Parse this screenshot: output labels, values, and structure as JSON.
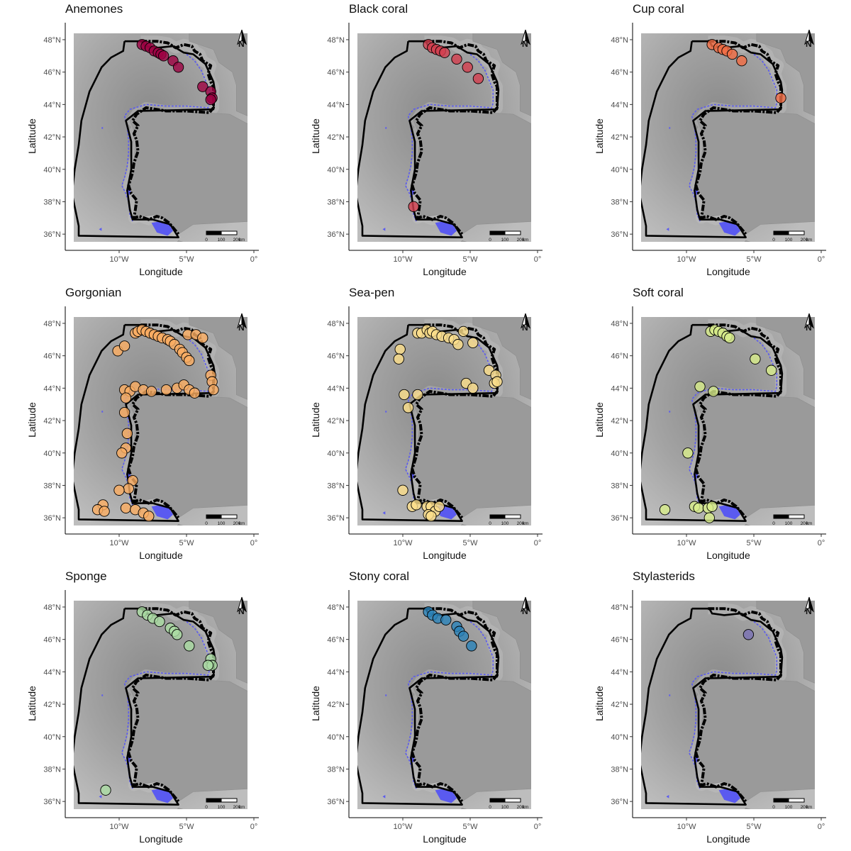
{
  "axes": {
    "xlabel": "Longitude",
    "ylabel": "Latitude",
    "xlim": [
      -14,
      0
    ],
    "ylim": [
      35,
      49
    ],
    "x_ticks": [
      {
        "v": -10,
        "label": "10°W"
      },
      {
        "v": -5,
        "label": "5°W"
      },
      {
        "v": 0,
        "label": "0°"
      }
    ],
    "y_ticks": [
      {
        "v": 36,
        "label": "36°N"
      },
      {
        "v": 38,
        "label": "38°N"
      },
      {
        "v": 40,
        "label": "40°N"
      },
      {
        "v": 42,
        "label": "42°N"
      },
      {
        "v": 44,
        "label": "44°N"
      },
      {
        "v": 46,
        "label": "46°N"
      },
      {
        "v": 48,
        "label": "48°N"
      }
    ]
  },
  "map": {
    "background": "grey bathymetry relief",
    "features": [
      "study-area boundary",
      "coastline",
      "shallow-water zones (blue)",
      "north arrow",
      "scale bar"
    ],
    "north_arrow_label": "N",
    "scale_bar_labels": [
      "0",
      "100",
      "200",
      "km"
    ],
    "colors": {
      "relief_light": "#bdbdbd",
      "relief_dark": "#8a8a8a",
      "land": "#9a9a9a",
      "shallow": "#5a5af0"
    }
  },
  "chart_data": [
    {
      "type": "scatter",
      "title": "Anemones",
      "color": "#9e0142",
      "points": [
        [
          -8.3,
          47.7
        ],
        [
          -8.0,
          47.6
        ],
        [
          -7.7,
          47.5
        ],
        [
          -7.4,
          47.3
        ],
        [
          -7.1,
          47.2
        ],
        [
          -6.9,
          47.1
        ],
        [
          -6.7,
          47.0
        ],
        [
          -6.0,
          46.7
        ],
        [
          -5.6,
          46.3
        ],
        [
          -3.8,
          45.1
        ],
        [
          -3.2,
          44.8
        ],
        [
          -3.1,
          44.4
        ],
        [
          -3.2,
          44.3
        ]
      ]
    },
    {
      "type": "scatter",
      "title": "Black coral",
      "color": "#d53e4f",
      "points": [
        [
          -8.1,
          47.7
        ],
        [
          -7.8,
          47.5
        ],
        [
          -7.5,
          47.4
        ],
        [
          -7.2,
          47.3
        ],
        [
          -6.9,
          47.2
        ],
        [
          -6.0,
          46.8
        ],
        [
          -5.2,
          46.3
        ],
        [
          -4.4,
          45.6
        ],
        [
          -9.2,
          37.7
        ]
      ]
    },
    {
      "type": "scatter",
      "title": "Cup coral",
      "color": "#f46d43",
      "points": [
        [
          -8.1,
          47.7
        ],
        [
          -7.6,
          47.5
        ],
        [
          -7.3,
          47.4
        ],
        [
          -7.0,
          47.3
        ],
        [
          -6.6,
          47.1
        ],
        [
          -5.9,
          46.7
        ],
        [
          -3.0,
          44.4
        ]
      ]
    },
    {
      "type": "scatter",
      "title": "Gorgonian",
      "color": "#fdae61",
      "points": [
        [
          -8.8,
          47.4
        ],
        [
          -8.6,
          47.5
        ],
        [
          -8.3,
          47.6
        ],
        [
          -8.0,
          47.5
        ],
        [
          -7.7,
          47.4
        ],
        [
          -7.4,
          47.3
        ],
        [
          -7.1,
          47.2
        ],
        [
          -6.8,
          47.1
        ],
        [
          -6.4,
          47.0
        ],
        [
          -6.2,
          46.9
        ],
        [
          -5.9,
          46.7
        ],
        [
          -5.5,
          46.4
        ],
        [
          -5.3,
          46.2
        ],
        [
          -5.0,
          45.9
        ],
        [
          -4.8,
          45.7
        ],
        [
          -4.9,
          47.3
        ],
        [
          -4.3,
          47.3
        ],
        [
          -3.8,
          47.1
        ],
        [
          -3.2,
          44.8
        ],
        [
          -3.1,
          44.4
        ],
        [
          -3.0,
          43.9
        ],
        [
          -10.1,
          46.3
        ],
        [
          -9.6,
          46.6
        ],
        [
          -9.6,
          43.9
        ],
        [
          -9.2,
          43.8
        ],
        [
          -8.8,
          44.1
        ],
        [
          -8.2,
          43.9
        ],
        [
          -7.6,
          43.8
        ],
        [
          -6.5,
          43.9
        ],
        [
          -5.7,
          44.0
        ],
        [
          -5.2,
          44.2
        ],
        [
          -4.8,
          43.9
        ],
        [
          -4.4,
          43.7
        ],
        [
          -9.5,
          43.4
        ],
        [
          -9.6,
          42.5
        ],
        [
          -9.4,
          41.2
        ],
        [
          -9.5,
          40.3
        ],
        [
          -9.8,
          40.0
        ],
        [
          -9.0,
          38.3
        ],
        [
          -9.3,
          37.8
        ],
        [
          -10.0,
          37.7
        ],
        [
          -11.2,
          36.8
        ],
        [
          -11.6,
          36.5
        ],
        [
          -11.1,
          36.4
        ],
        [
          -9.5,
          36.6
        ],
        [
          -8.8,
          36.5
        ],
        [
          -8.2,
          36.3
        ],
        [
          -7.8,
          36.1
        ]
      ]
    },
    {
      "type": "scatter",
      "title": "Sea-pen",
      "color": "#fee08b",
      "points": [
        [
          -8.9,
          47.4
        ],
        [
          -8.6,
          47.4
        ],
        [
          -8.2,
          47.6
        ],
        [
          -8.0,
          47.4
        ],
        [
          -7.8,
          47.5
        ],
        [
          -7.5,
          47.3
        ],
        [
          -7.1,
          47.2
        ],
        [
          -6.6,
          47.1
        ],
        [
          -6.2,
          47.0
        ],
        [
          -5.9,
          46.7
        ],
        [
          -5.5,
          47.5
        ],
        [
          -4.8,
          46.8
        ],
        [
          -3.6,
          45.1
        ],
        [
          -3.1,
          44.8
        ],
        [
          -3.2,
          44.3
        ],
        [
          -3.0,
          44.4
        ],
        [
          -5.3,
          44.3
        ],
        [
          -4.8,
          44.0
        ],
        [
          -10.2,
          46.4
        ],
        [
          -10.3,
          45.8
        ],
        [
          -9.9,
          43.6
        ],
        [
          -8.9,
          43.6
        ],
        [
          -9.6,
          42.8
        ],
        [
          -10.0,
          37.7
        ],
        [
          -9.3,
          36.7
        ],
        [
          -9.0,
          36.8
        ],
        [
          -8.2,
          36.7
        ],
        [
          -7.9,
          36.7
        ],
        [
          -7.6,
          36.4
        ],
        [
          -7.3,
          36.7
        ],
        [
          -8.1,
          36.2
        ],
        [
          -7.9,
          36.1
        ]
      ]
    },
    {
      "type": "scatter",
      "title": "Soft coral",
      "color": "#d9ef8b",
      "points": [
        [
          -8.2,
          47.5
        ],
        [
          -7.9,
          47.6
        ],
        [
          -7.6,
          47.5
        ],
        [
          -7.3,
          47.4
        ],
        [
          -7.0,
          47.2
        ],
        [
          -6.8,
          47.1
        ],
        [
          -4.9,
          45.8
        ],
        [
          -3.7,
          45.1
        ],
        [
          -9.0,
          44.1
        ],
        [
          -8.0,
          43.8
        ],
        [
          -9.9,
          40.0
        ],
        [
          -11.6,
          36.5
        ],
        [
          -9.4,
          36.7
        ],
        [
          -9.1,
          36.6
        ],
        [
          -8.4,
          36.6
        ],
        [
          -8.1,
          36.7
        ],
        [
          -8.3,
          36.0
        ]
      ]
    },
    {
      "type": "scatter",
      "title": "Sponge",
      "color": "#abdda4",
      "points": [
        [
          -8.3,
          47.7
        ],
        [
          -7.9,
          47.5
        ],
        [
          -7.5,
          47.3
        ],
        [
          -7.0,
          47.1
        ],
        [
          -6.2,
          46.7
        ],
        [
          -5.9,
          46.5
        ],
        [
          -5.7,
          46.3
        ],
        [
          -4.8,
          45.6
        ],
        [
          -3.2,
          44.8
        ],
        [
          -3.1,
          44.4
        ],
        [
          -3.4,
          44.4
        ],
        [
          -11.0,
          36.7
        ]
      ]
    },
    {
      "type": "scatter",
      "title": "Stony coral",
      "color": "#2b83ba",
      "points": [
        [
          -8.1,
          47.7
        ],
        [
          -7.8,
          47.5
        ],
        [
          -7.4,
          47.3
        ],
        [
          -6.8,
          47.2
        ],
        [
          -6.0,
          46.8
        ],
        [
          -5.8,
          46.5
        ],
        [
          -5.5,
          46.2
        ],
        [
          -4.9,
          45.6
        ]
      ]
    },
    {
      "type": "scatter",
      "title": "Stylasterids",
      "color": "#7b72b5",
      "points": [
        [
          -5.4,
          46.3
        ]
      ]
    }
  ]
}
